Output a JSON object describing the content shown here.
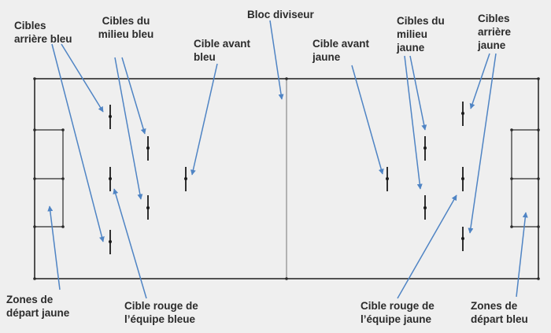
{
  "labels": {
    "blue_back_targets": "Cibles\narrière bleu",
    "blue_middle_targets": "Cibles du\nmilieu bleu",
    "divider_block": "Bloc diviseur",
    "blue_front_target": "Cible avant\nbleu",
    "yellow_front_target": "Cible avant\njaune",
    "yellow_middle_targets": "Cibles du\nmilieu\njaune",
    "yellow_back_targets": "Cibles\narrière\njaune",
    "yellow_start_zones": "Zones de\ndépart jaune",
    "blue_team_red_target": "Cible rouge de\nl’équipe bleue",
    "yellow_team_red_target": "Cible rouge de\nl’équipe jaune",
    "blue_start_zones": "Zones de\ndépart bleu"
  },
  "colors": {
    "background": "#efefef",
    "field_line": "#2a2a2a",
    "divider_line": "#8a8a8a",
    "arrow": "#4f84c4"
  }
}
